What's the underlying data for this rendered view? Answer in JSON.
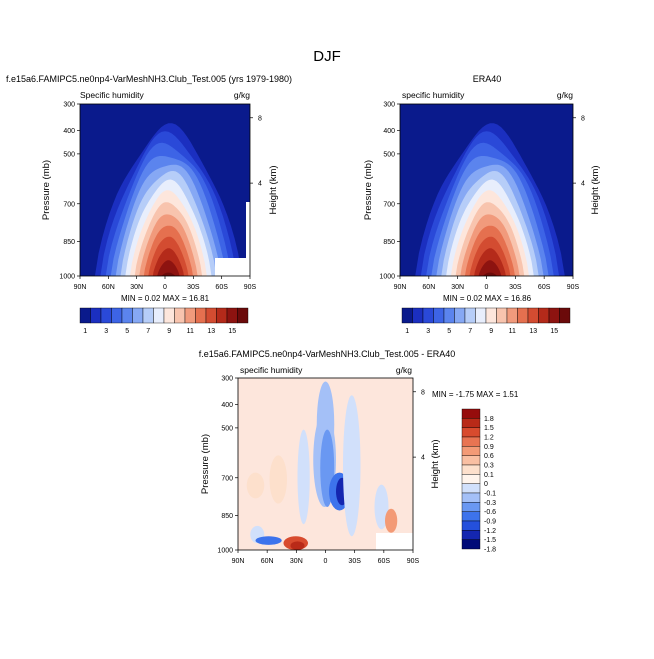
{
  "main_title": "DJF",
  "colors": {
    "seq_scale": [
      "#0a1a8c",
      "#1b2fc0",
      "#2a49d8",
      "#3d64e6",
      "#5b84ee",
      "#86a8f4",
      "#b6cdf8",
      "#e8eefc",
      "#fde6dc",
      "#f8c4ae",
      "#f19a7c",
      "#e5704f",
      "#d34c31",
      "#b42a1a",
      "#8d1310",
      "#6b0a0a"
    ],
    "div_scale": [
      "#000b78",
      "#1426b0",
      "#2450dc",
      "#3d73ec",
      "#6a98f2",
      "#a4c0f7",
      "#d1e0fb",
      "#fff4ec",
      "#fde0cc",
      "#f9bfa2",
      "#f39a76",
      "#e87452",
      "#d84b2e",
      "#b92a18",
      "#960c0c"
    ]
  },
  "panels": {
    "model": {
      "title": "f.e15a6.FAMIPC5.ne0np4-VarMeshNH3.Club_Test.005 (yrs 1979-1980)",
      "left_label": "Specific humidity",
      "units": "g/kg",
      "ylabel": "Pressure (mb)",
      "y2label": "Height (km)",
      "yticks": [
        "300",
        "400",
        "500",
        "700",
        "850",
        "1000"
      ],
      "xticks": [
        "90N",
        "60N",
        "30N",
        "0",
        "30S",
        "60S",
        "90S"
      ],
      "htticks": [
        "8",
        "4"
      ],
      "minmax": "MIN =  0.02  MAX =  16.81"
    },
    "era": {
      "title": "ERA40",
      "left_label": "specific humidity",
      "units": "g/kg",
      "ylabel": "Pressure (mb)",
      "y2label": "Height (km)",
      "yticks": [
        "300",
        "400",
        "500",
        "700",
        "850",
        "1000"
      ],
      "xticks": [
        "90N",
        "60N",
        "30N",
        "0",
        "30S",
        "60S",
        "90S"
      ],
      "htticks": [
        "8",
        "4"
      ],
      "minmax": "MIN =  0.02  MAX =  16.86"
    },
    "diff": {
      "title": "f.e15a6.FAMIPC5.ne0np4-VarMeshNH3.Club_Test.005 - ERA40",
      "left_label": "specific humidity",
      "units": "g/kg",
      "ylabel": "Pressure (mb)",
      "y2label": "Height (km)",
      "yticks": [
        "300",
        "400",
        "500",
        "700",
        "850",
        "1000"
      ],
      "xticks": [
        "90N",
        "60N",
        "30N",
        "0",
        "30S",
        "60S",
        "90S"
      ],
      "htticks": [
        "8",
        "4"
      ],
      "minmax": "MIN = -1.75  MAX =   1.51"
    }
  },
  "colorbar": {
    "labels": [
      "1",
      "3",
      "5",
      "7",
      "9",
      "11",
      "13",
      "15"
    ]
  },
  "diff_colorbar": {
    "labels": [
      "1.8",
      "1.5",
      "1.2",
      "0.9",
      "0.6",
      "0.3",
      "0.1",
      "0",
      "-0.1",
      "-0.3",
      "-0.6",
      "-0.9",
      "-1.2",
      "-1.5",
      "-1.8"
    ]
  },
  "chart_data": [
    {
      "type": "heatmap",
      "name_ref": "panel-model",
      "title": "f.e15a6.FAMIPC5.ne0np4-VarMeshNH3.Club_Test.005 (yrs 1979-1980)",
      "xlabel": "",
      "ylabel": "Pressure (mb)",
      "x": [
        "90N",
        "60N",
        "30N",
        "0",
        "30S",
        "60S",
        "90S"
      ],
      "y": [
        300,
        400,
        500,
        700,
        850,
        1000
      ],
      "units": "g/kg",
      "min": 0.02,
      "max": 16.81
    },
    {
      "type": "heatmap",
      "name_ref": "panel-era",
      "title": "ERA40",
      "xlabel": "",
      "ylabel": "Pressure (mb)",
      "x": [
        "90N",
        "60N",
        "30N",
        "0",
        "30S",
        "60S",
        "90S"
      ],
      "y": [
        300,
        400,
        500,
        700,
        850,
        1000
      ],
      "units": "g/kg",
      "min": 0.02,
      "max": 16.86
    },
    {
      "type": "heatmap",
      "name_ref": "panel-diff",
      "title": "f.e15a6.FAMIPC5.ne0np4-VarMeshNH3.Club_Test.005 - ERA40",
      "xlabel": "",
      "ylabel": "Pressure (mb)",
      "x": [
        "90N",
        "60N",
        "30N",
        "0",
        "30S",
        "60S",
        "90S"
      ],
      "y": [
        300,
        400,
        500,
        700,
        850,
        1000
      ],
      "units": "g/kg",
      "min": -1.75,
      "max": 1.51
    }
  ]
}
